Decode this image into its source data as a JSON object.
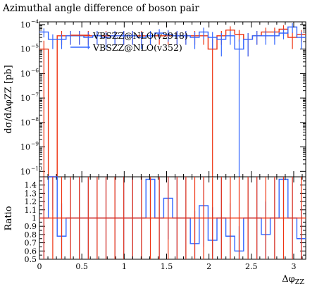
{
  "chart_data": [
    {
      "type": "line",
      "subtype": "histogram",
      "title": "Azimuthal angle difference of boson pair",
      "ylabel": "dσ/dΔφZZ [pb]",
      "xlabel": "",
      "xlim": [
        0,
        3.1416
      ],
      "ylim": [
        6e-11,
        0.00013
      ],
      "yscale": "log",
      "yticks": [
        1e-10,
        1e-09,
        1e-08,
        1e-07,
        1e-06,
        1e-05,
        0.0001
      ],
      "ytick_labels": [
        "10",
        "10",
        "10",
        "10",
        "10",
        "10",
        "10"
      ],
      "ytick_exponents": [
        "−10",
        "−9",
        "−8",
        "−7",
        "−6",
        "−5",
        "−4"
      ],
      "bin_edges": [
        0,
        0.1047,
        0.2094,
        0.3142,
        0.4189,
        0.5236,
        0.6283,
        0.733,
        0.8378,
        0.9425,
        1.0472,
        1.1519,
        1.2566,
        1.3614,
        1.4661,
        1.5708,
        1.6755,
        1.7802,
        1.885,
        1.9897,
        2.0944,
        2.1991,
        2.3038,
        2.4086,
        2.5133,
        2.618,
        2.7227,
        2.8274,
        2.9322,
        3.0369,
        3.1416
      ],
      "legend_position": "top-left",
      "series": [
        {
          "name": "VBSZZ@NLO(v2918)",
          "color": "#ee3311",
          "values": [
            1e-05,
            0,
            3.5e-05,
            3.5e-05,
            3.5e-05,
            3.5e-05,
            3.5e-05,
            3.5e-05,
            3.5e-05,
            3.5e-05,
            3.5e-05,
            3.5e-05,
            3.5e-05,
            3.5e-05,
            3.5e-05,
            3.5e-05,
            3.5e-05,
            3.5e-05,
            3.5e-05,
            1e-05,
            3.5e-05,
            6e-05,
            4e-05,
            2.5e-05,
            3.5e-05,
            5e-05,
            5e-05,
            6.5e-05,
            3e-05,
            4e-05
          ],
          "errors": [
            1.2e-05,
            0,
            2e-05,
            2e-05,
            2e-05,
            2e-05,
            2e-05,
            2e-05,
            2e-05,
            2e-05,
            2e-05,
            2e-05,
            2e-05,
            2e-05,
            2e-05,
            2e-05,
            2e-05,
            2e-05,
            2e-05,
            1.5e-05,
            2e-05,
            2.5e-05,
            2e-05,
            2e-05,
            2e-05,
            2.5e-05,
            2.5e-05,
            3e-05,
            2e-05,
            2e-05
          ]
        },
        {
          "name": "VBSZZ@NLO(v352)",
          "color": "#3366ff",
          "values": [
            5e-05,
            2.5e-05,
            2.5e-05,
            3.5e-05,
            3.5e-05,
            3e-05,
            3.5e-05,
            3e-05,
            3.5e-05,
            3.5e-05,
            3.5e-05,
            3e-05,
            3.5e-05,
            4.5e-05,
            4e-05,
            3.5e-05,
            3.5e-05,
            3e-05,
            5e-05,
            3e-05,
            2.5e-05,
            3.5e-05,
            1e-05,
            2.5e-05,
            3.5e-05,
            3.5e-05,
            3.5e-05,
            4.5e-05,
            8e-05,
            3e-05
          ],
          "errors": [
            2e-05,
            1.5e-05,
            1.5e-05,
            2e-05,
            2e-05,
            2e-05,
            2e-05,
            2e-05,
            2e-05,
            2e-05,
            2e-05,
            2e-05,
            2e-05,
            2e-05,
            2e-05,
            2e-05,
            2e-05,
            2e-05,
            2.5e-05,
            2e-05,
            2e-05,
            2e-05,
            1.5e-05,
            2e-05,
            2e-05,
            2e-05,
            2e-05,
            2e-05,
            3.5e-05,
            2e-05
          ]
        }
      ]
    },
    {
      "type": "line",
      "subtype": "histogram",
      "ylabel": "Ratio",
      "xlabel": "Δφ",
      "xlabel_subscript": "ZZ",
      "xlim": [
        0,
        3.1416
      ],
      "ylim": [
        0.5,
        1.5
      ],
      "xticks": [
        0,
        0.5,
        1,
        1.5,
        2,
        2.5,
        3
      ],
      "xtick_labels": [
        "0",
        "0.5",
        "1",
        "1.5",
        "2",
        "2.5",
        "3"
      ],
      "yticks": [
        0.5,
        0.6,
        0.7,
        0.8,
        0.9,
        1,
        1.1,
        1.2,
        1.3,
        1.4
      ],
      "ytick_labels": [
        "0.5",
        "0.6",
        "0.7",
        "0.8",
        "0.9",
        "1",
        "1.1",
        "1.2",
        "1.3",
        "1.4"
      ],
      "bin_edges": [
        0,
        0.1047,
        0.2094,
        0.3142,
        0.4189,
        0.5236,
        0.6283,
        0.733,
        0.8378,
        0.9425,
        1.0472,
        1.1519,
        1.2566,
        1.3614,
        1.4661,
        1.5708,
        1.6755,
        1.7802,
        1.885,
        1.9897,
        2.0944,
        2.1991,
        2.3038,
        2.4086,
        2.5133,
        2.618,
        2.7227,
        2.8274,
        2.9322,
        3.0369,
        3.1416
      ],
      "series": [
        {
          "name": "VBSZZ@NLO(v2918)",
          "color": "#ee3311",
          "values": [
            1,
            1,
            1,
            1,
            1,
            1,
            1,
            1,
            1,
            1,
            1,
            1,
            1,
            1,
            1,
            1,
            1,
            1,
            1,
            1,
            1,
            1,
            1,
            1,
            1,
            1,
            1,
            1,
            1,
            1
          ],
          "err_lo": [
            0.5,
            0.5,
            0.5,
            0.5,
            0.5,
            0.5,
            0.5,
            0.5,
            0.5,
            0.5,
            0.5,
            0.5,
            0.5,
            0.5,
            0.5,
            0.5,
            0.5,
            0.5,
            0.5,
            0.5,
            0.5,
            0.5,
            0.5,
            0.5,
            0.5,
            0.5,
            0.5,
            0.5,
            0.5,
            0.5
          ],
          "err_hi": [
            0.5,
            0.5,
            0.5,
            0.5,
            0.5,
            0.5,
            0.5,
            0.5,
            0.5,
            0.5,
            0.5,
            0.5,
            0.5,
            0.5,
            0.5,
            0.5,
            0.5,
            0.5,
            0.5,
            0.5,
            0.5,
            0.5,
            0.5,
            0.5,
            0.5,
            0.5,
            0.5,
            0.5,
            0.5,
            0.5
          ]
        },
        {
          "name": "VBSZZ@NLO(v352)",
          "color": "#3366ff",
          "values": [
            1,
            1.5,
            0.78,
            1,
            1,
            1,
            1,
            1,
            1,
            1,
            1,
            1,
            1.47,
            1,
            1.24,
            1,
            1,
            0.69,
            1.15,
            0.73,
            1,
            0.78,
            0.6,
            1,
            1,
            0.8,
            1,
            1.47,
            1,
            0.75
          ],
          "err_lo": [
            0.5,
            0.4,
            0.4,
            0.5,
            0.5,
            0.5,
            0.5,
            0.5,
            0.5,
            0.5,
            0.5,
            0.5,
            0.5,
            0.5,
            0.5,
            0.5,
            0.5,
            0.4,
            0.5,
            0.4,
            0.5,
            0.4,
            0.3,
            0.5,
            0.5,
            0.4,
            0.5,
            0.5,
            0.5,
            0.4
          ],
          "err_hi": [
            0.5,
            0.4,
            0.4,
            0.5,
            0.5,
            0.5,
            0.5,
            0.5,
            0.5,
            0.5,
            0.5,
            0.5,
            0.5,
            0.5,
            0.5,
            0.5,
            0.5,
            0.4,
            0.5,
            0.4,
            0.5,
            0.4,
            0.3,
            0.5,
            0.5,
            0.4,
            0.5,
            0.5,
            0.5,
            0.4
          ]
        }
      ]
    }
  ]
}
